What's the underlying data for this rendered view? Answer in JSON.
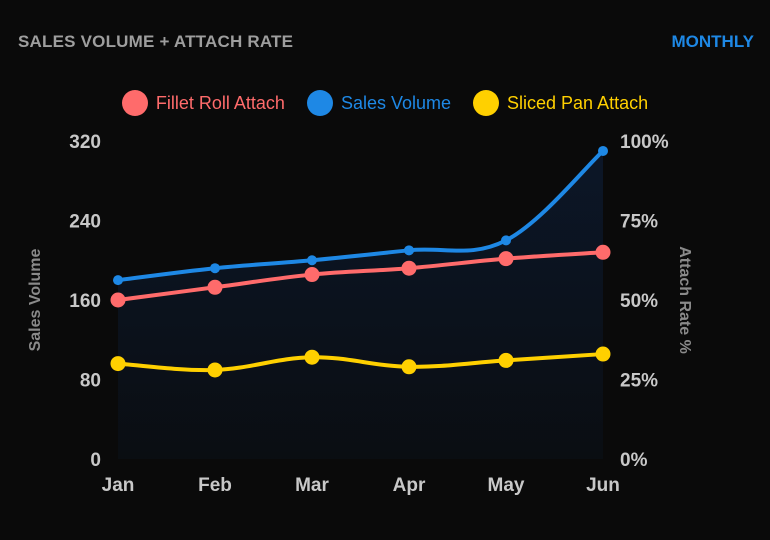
{
  "header": {
    "title": "SALES VOLUME + ATTACH RATE",
    "period_toggle": "MONTHLY"
  },
  "colors": {
    "fillet_roll": "#ff6b6b",
    "sales_volume": "#1e88e5",
    "sliced_pan": "#ffd000",
    "background": "#0a0a0a"
  },
  "chart_data": {
    "type": "line",
    "categories": [
      "Jan",
      "Feb",
      "Mar",
      "Apr",
      "May",
      "Jun"
    ],
    "series": [
      {
        "name": "Fillet Roll Attach",
        "axis": "right",
        "values": [
          50,
          54,
          58,
          60,
          63,
          65
        ]
      },
      {
        "name": "Sales Volume",
        "axis": "left",
        "area": true,
        "values": [
          180,
          192,
          200,
          210,
          220,
          310
        ]
      },
      {
        "name": "Sliced Pan Attach",
        "axis": "right",
        "values": [
          30,
          28,
          32,
          29,
          31,
          33
        ]
      }
    ],
    "y_left": {
      "label": "Sales Volume",
      "ticks": [
        "0",
        "80",
        "160",
        "240",
        "320"
      ],
      "range": [
        0,
        320
      ]
    },
    "y_right": {
      "label": "Attach Rate %",
      "ticks": [
        "0%",
        "25%",
        "50%",
        "75%",
        "100%"
      ],
      "range": [
        0,
        100
      ]
    },
    "legend_position": "top-center",
    "grid": false
  }
}
